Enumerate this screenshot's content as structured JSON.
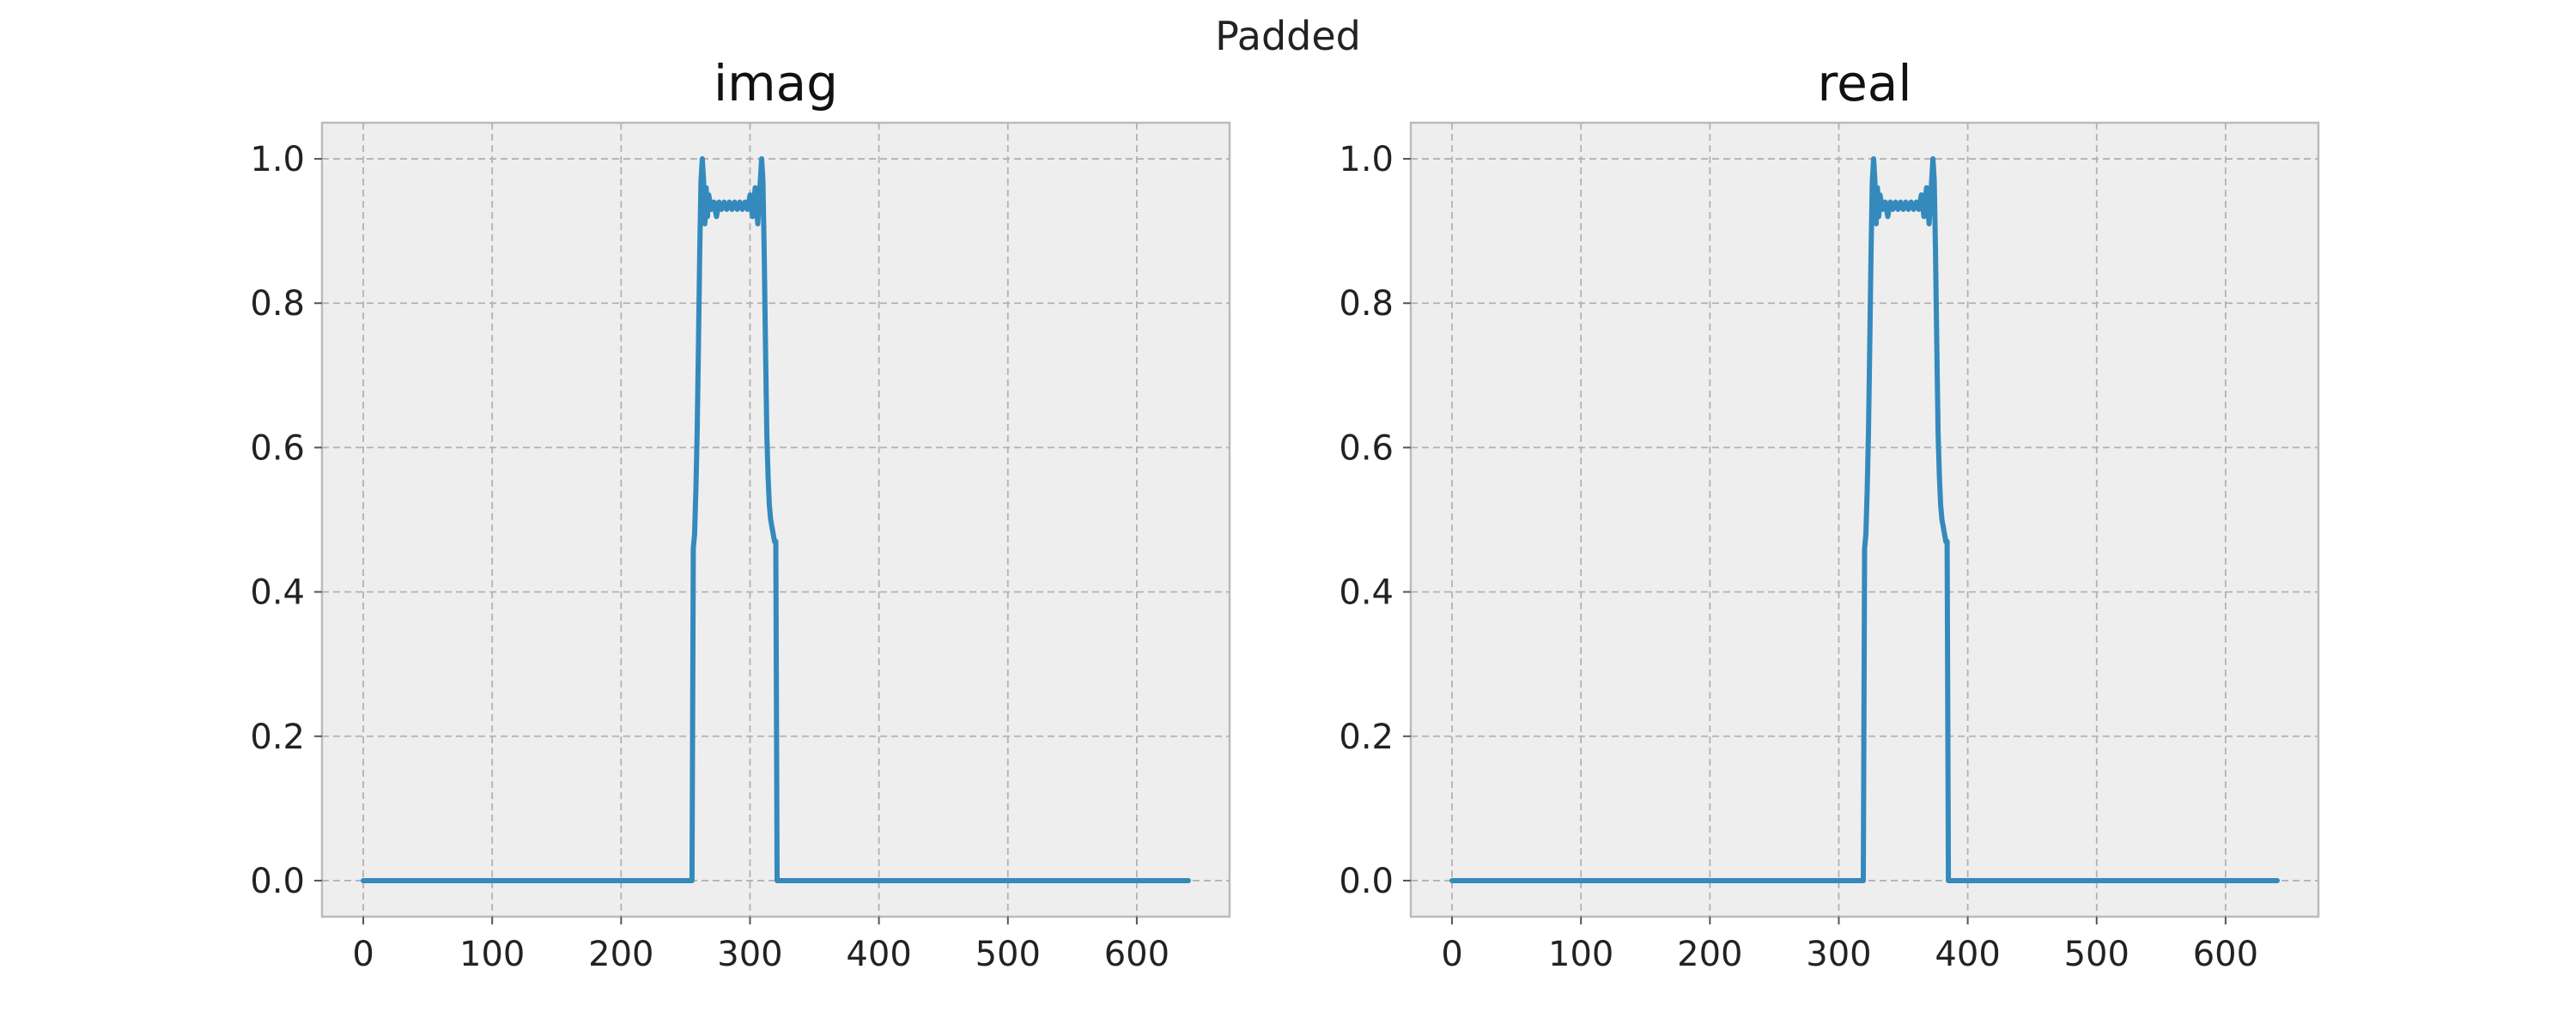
{
  "figure": {
    "suptitle": "Padded"
  },
  "chart_data": [
    {
      "type": "line",
      "title": "imag",
      "xlabel": "",
      "ylabel": "",
      "xlim": [
        -32,
        672
      ],
      "ylim": [
        -0.05,
        1.05
      ],
      "xticks": [
        0,
        100,
        200,
        300,
        400,
        500,
        600
      ],
      "xtick_labels": [
        "0",
        "100",
        "200",
        "300",
        "400",
        "500",
        "600"
      ],
      "yticks": [
        0.0,
        0.2,
        0.4,
        0.6,
        0.8,
        1.0
      ],
      "ytick_labels": [
        "0.0",
        "0.2",
        "0.4",
        "0.6",
        "0.8",
        "1.0"
      ],
      "grid": true,
      "series": [
        {
          "color": "#348abd",
          "x": [
            0,
            255,
            256,
            257,
            258,
            259,
            260,
            261,
            262,
            263,
            264,
            265,
            266,
            267,
            268,
            270,
            272,
            274,
            276,
            278,
            280,
            282,
            284,
            286,
            288,
            290,
            292,
            294,
            296,
            298,
            300,
            302,
            304,
            306,
            308,
            309,
            310,
            311,
            312,
            313,
            314,
            315,
            316,
            317,
            318,
            319,
            320,
            321,
            640
          ],
          "y": [
            0.0,
            0.0,
            0.46,
            0.48,
            0.54,
            0.62,
            0.74,
            0.87,
            0.97,
            1.0,
            0.97,
            0.91,
            0.96,
            0.92,
            0.95,
            0.93,
            0.94,
            0.92,
            0.94,
            0.93,
            0.94,
            0.93,
            0.94,
            0.93,
            0.94,
            0.93,
            0.94,
            0.93,
            0.94,
            0.93,
            0.95,
            0.92,
            0.96,
            0.91,
            0.97,
            1.0,
            0.97,
            0.87,
            0.74,
            0.62,
            0.56,
            0.52,
            0.5,
            0.49,
            0.48,
            0.47,
            0.47,
            0.0,
            0.0
          ]
        }
      ]
    },
    {
      "type": "line",
      "title": "real",
      "xlabel": "",
      "ylabel": "",
      "xlim": [
        -32,
        672
      ],
      "ylim": [
        -0.05,
        1.05
      ],
      "xticks": [
        0,
        100,
        200,
        300,
        400,
        500,
        600
      ],
      "xtick_labels": [
        "0",
        "100",
        "200",
        "300",
        "400",
        "500",
        "600"
      ],
      "yticks": [
        0.0,
        0.2,
        0.4,
        0.6,
        0.8,
        1.0
      ],
      "ytick_labels": [
        "0.0",
        "0.2",
        "0.4",
        "0.6",
        "0.8",
        "1.0"
      ],
      "grid": true,
      "series": [
        {
          "color": "#348abd",
          "x": [
            0,
            319,
            320,
            321,
            322,
            323,
            324,
            325,
            326,
            327,
            328,
            329,
            330,
            331,
            332,
            334,
            336,
            338,
            340,
            342,
            344,
            346,
            348,
            350,
            352,
            354,
            356,
            358,
            360,
            362,
            364,
            366,
            368,
            370,
            372,
            373,
            374,
            375,
            376,
            377,
            378,
            379,
            380,
            381,
            382,
            383,
            384,
            385,
            640
          ],
          "y": [
            0.0,
            0.0,
            0.46,
            0.48,
            0.54,
            0.62,
            0.74,
            0.87,
            0.97,
            1.0,
            0.97,
            0.91,
            0.96,
            0.92,
            0.95,
            0.93,
            0.94,
            0.92,
            0.94,
            0.93,
            0.94,
            0.93,
            0.94,
            0.93,
            0.94,
            0.93,
            0.94,
            0.93,
            0.94,
            0.93,
            0.95,
            0.92,
            0.96,
            0.91,
            0.97,
            1.0,
            0.97,
            0.87,
            0.74,
            0.62,
            0.56,
            0.52,
            0.5,
            0.49,
            0.48,
            0.47,
            0.47,
            0.0,
            0.0
          ]
        }
      ]
    }
  ]
}
